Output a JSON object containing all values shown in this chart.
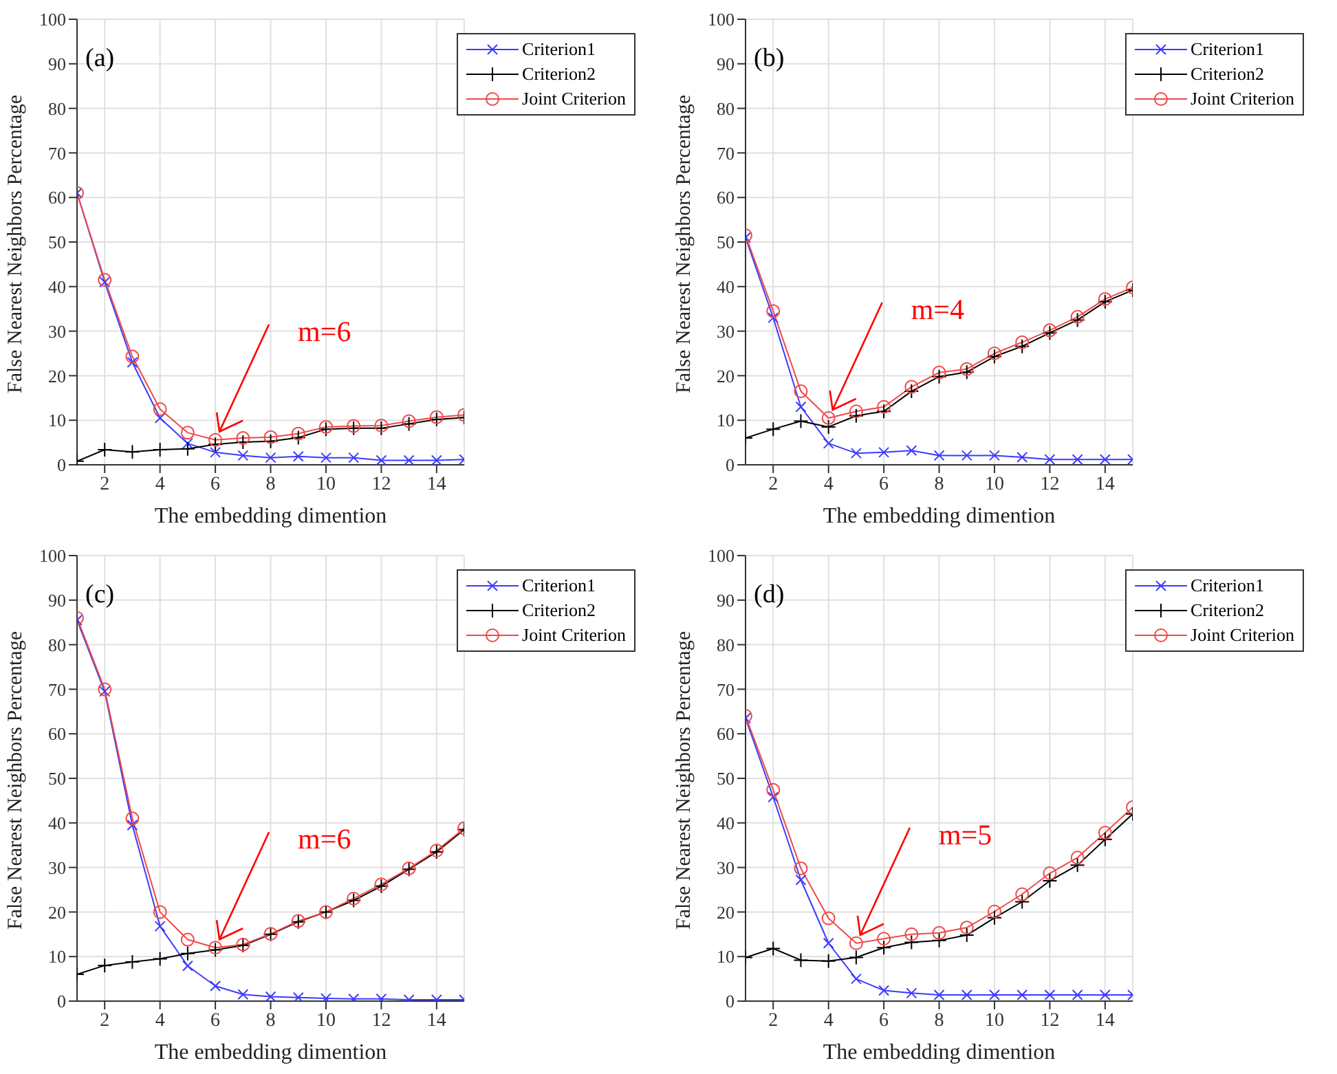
{
  "chart_data": [
    {
      "type": "line",
      "xlabel": "The embedding dimention",
      "ylabel": "False Nearest Neighbors Percentage",
      "x": [
        1,
        2,
        3,
        4,
        5,
        6,
        7,
        8,
        9,
        10,
        11,
        12,
        13,
        14,
        15
      ],
      "xlim": [
        1,
        15
      ],
      "xticks": [
        2,
        4,
        6,
        8,
        10,
        12,
        14
      ],
      "ylim": [
        0,
        100
      ],
      "yticks": [
        0,
        10,
        20,
        30,
        40,
        50,
        60,
        70,
        80,
        90,
        100
      ],
      "grid": true,
      "legend": "top right",
      "annotations": [
        "(a)",
        {
          "text": "m=6",
          "x": 6,
          "y": 5.6
        }
      ],
      "series": [
        {
          "name": "Criterion1",
          "color": "#3b3bff",
          "marker": "cross",
          "values": [
            61,
            41,
            23,
            10.5,
            4.8,
            2.8,
            2.1,
            1.6,
            1.9,
            1.6,
            1.6,
            1,
            1,
            1,
            1.2
          ]
        },
        {
          "name": "Criterion2",
          "color": "#000000",
          "marker": "plus",
          "values": [
            0.8,
            3.4,
            2.9,
            3.4,
            3.6,
            4.6,
            5.1,
            5.3,
            6.1,
            8,
            8.2,
            8.2,
            9.2,
            10.2,
            10.6
          ]
        },
        {
          "name": "Joint Criterion",
          "color": "#f04848",
          "marker": "circle",
          "values": [
            61,
            41.5,
            24.3,
            12.5,
            7.2,
            5.6,
            6,
            6.2,
            7,
            8.5,
            8.7,
            8.8,
            9.8,
            10.7,
            11.2
          ]
        }
      ]
    },
    {
      "type": "line",
      "xlabel": "The embedding dimention",
      "ylabel": "False Nearest Neighbors Percentage",
      "x": [
        1,
        2,
        3,
        4,
        5,
        6,
        7,
        8,
        9,
        10,
        11,
        12,
        13,
        14,
        15
      ],
      "xlim": [
        1,
        15
      ],
      "xticks": [
        2,
        4,
        6,
        8,
        10,
        12,
        14
      ],
      "ylim": [
        0,
        100
      ],
      "yticks": [
        0,
        10,
        20,
        30,
        40,
        50,
        60,
        70,
        80,
        90,
        100
      ],
      "grid": true,
      "legend": "top right",
      "annotations": [
        "(b)",
        {
          "text": "m=4",
          "x": 4,
          "y": 10.5
        }
      ],
      "series": [
        {
          "name": "Criterion1",
          "color": "#3b3bff",
          "marker": "cross",
          "values": [
            51,
            33,
            13,
            4.8,
            2.6,
            2.8,
            3.2,
            2.1,
            2.1,
            2.1,
            1.7,
            1.2,
            1.2,
            1.2,
            1.2
          ]
        },
        {
          "name": "Criterion2",
          "color": "#000000",
          "marker": "plus",
          "values": [
            6,
            8,
            9.8,
            8.5,
            11,
            12,
            16.5,
            19.8,
            20.8,
            24.3,
            26.6,
            29.6,
            32.5,
            36.6,
            39.2
          ]
        },
        {
          "name": "Joint Criterion",
          "color": "#f04848",
          "marker": "circle",
          "values": [
            51.5,
            34.5,
            16.5,
            10.5,
            12,
            13,
            17.5,
            20.7,
            21.5,
            25,
            27.5,
            30.2,
            33.2,
            37.2,
            39.8
          ]
        }
      ]
    },
    {
      "type": "line",
      "xlabel": "The embedding dimention",
      "ylabel": "False Nearest Neighbors Percentage",
      "x": [
        1,
        2,
        3,
        4,
        5,
        6,
        7,
        8,
        9,
        10,
        11,
        12,
        13,
        14,
        15
      ],
      "xlim": [
        1,
        15
      ],
      "xticks": [
        2,
        4,
        6,
        8,
        10,
        12,
        14
      ],
      "ylim": [
        0,
        100
      ],
      "yticks": [
        0,
        10,
        20,
        30,
        40,
        50,
        60,
        70,
        80,
        90,
        100
      ],
      "grid": true,
      "legend": "top right",
      "annotations": [
        "(c)",
        {
          "text": "m=6",
          "x": 6,
          "y": 12
        }
      ],
      "series": [
        {
          "name": "Criterion1",
          "color": "#3b3bff",
          "marker": "cross",
          "values": [
            85.5,
            69.5,
            39.5,
            16.8,
            7.9,
            3.4,
            1.5,
            1,
            0.8,
            0.6,
            0.5,
            0.5,
            0.3,
            0.3,
            0.3
          ]
        },
        {
          "name": "Criterion2",
          "color": "#000000",
          "marker": "plus",
          "values": [
            6,
            8,
            8.8,
            9.5,
            10.7,
            11.5,
            12.5,
            15,
            17.8,
            20,
            22.6,
            25.8,
            29.6,
            33.5,
            38.5
          ]
        },
        {
          "name": "Joint Criterion",
          "color": "#f04848",
          "marker": "circle",
          "values": [
            86,
            70,
            41,
            20,
            13.8,
            12,
            12.7,
            15.1,
            18,
            20,
            23,
            26.2,
            29.8,
            33.8,
            38.8
          ]
        }
      ]
    },
    {
      "type": "line",
      "xlabel": "The embedding dimention",
      "ylabel": "False Nearest Neighbors Percentage",
      "x": [
        1,
        2,
        3,
        4,
        5,
        6,
        7,
        8,
        9,
        10,
        11,
        12,
        13,
        14,
        15
      ],
      "xlim": [
        1,
        15
      ],
      "xticks": [
        2,
        4,
        6,
        8,
        10,
        12,
        14
      ],
      "ylim": [
        0,
        100
      ],
      "yticks": [
        0,
        10,
        20,
        30,
        40,
        50,
        60,
        70,
        80,
        90,
        100
      ],
      "grid": true,
      "legend": "top right",
      "annotations": [
        "(d)",
        {
          "text": "m=5",
          "x": 5,
          "y": 13
        }
      ],
      "series": [
        {
          "name": "Criterion1",
          "color": "#3b3bff",
          "marker": "cross",
          "values": [
            63.5,
            45.8,
            27.2,
            13,
            5,
            2.4,
            1.8,
            1.4,
            1.4,
            1.4,
            1.4,
            1.4,
            1.4,
            1.4,
            1.4
          ]
        },
        {
          "name": "Criterion2",
          "color": "#000000",
          "marker": "plus",
          "values": [
            9.8,
            11.8,
            9.2,
            9,
            9.8,
            12,
            13.2,
            13.6,
            14.8,
            18.7,
            22.3,
            27,
            30.5,
            36.3,
            42
          ]
        },
        {
          "name": "Joint Criterion",
          "color": "#f04848",
          "marker": "circle",
          "values": [
            64,
            47.4,
            29.8,
            18.6,
            13,
            14,
            15,
            15.3,
            16.5,
            20.1,
            24,
            28.7,
            32.2,
            37.8,
            43.5
          ]
        }
      ]
    }
  ]
}
